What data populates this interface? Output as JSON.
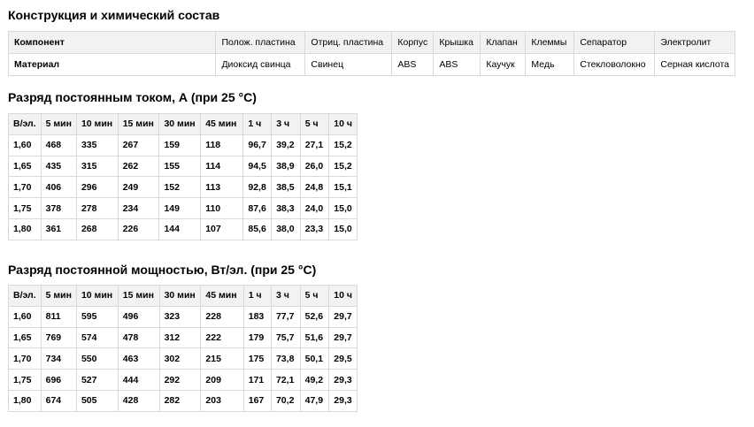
{
  "composition": {
    "title": "Конструкция и химический состав",
    "headers": [
      "Компонент",
      "Полож. пластина",
      "Отриц. пластина",
      "Корпус",
      "Крышка",
      "Клапан",
      "Клеммы",
      "Сепаратор",
      "Электролит"
    ],
    "row": [
      "Материал",
      "Диоксид свинца",
      "Свинец",
      "ABS",
      "ABS",
      "Каучук",
      "Медь",
      "Стекловолокно",
      "Серная кислота"
    ]
  },
  "current_discharge": {
    "title": "Разряд постоянным током, А (при 25 °С)",
    "headers": [
      "В/эл.",
      "5 мин",
      "10 мин",
      "15 мин",
      "30 мин",
      "45 мин",
      "1 ч",
      "3 ч",
      "5 ч",
      "10 ч"
    ],
    "rows": [
      [
        "1,60",
        "468",
        "335",
        "267",
        "159",
        "118",
        "96,7",
        "39,2",
        "27,1",
        "15,2"
      ],
      [
        "1,65",
        "435",
        "315",
        "262",
        "155",
        "114",
        "94,5",
        "38,9",
        "26,0",
        "15,2"
      ],
      [
        "1,70",
        "406",
        "296",
        "249",
        "152",
        "113",
        "92,8",
        "38,5",
        "24,8",
        "15,1"
      ],
      [
        "1,75",
        "378",
        "278",
        "234",
        "149",
        "110",
        "87,6",
        "38,3",
        "24,0",
        "15,0"
      ],
      [
        "1,80",
        "361",
        "268",
        "226",
        "144",
        "107",
        "85,6",
        "38,0",
        "23,3",
        "15,0"
      ]
    ]
  },
  "power_discharge": {
    "title": "Разряд постоянной мощностью, Вт/эл. (при 25 °С)",
    "headers": [
      "В/эл.",
      "5 мин",
      "10 мин",
      "15 мин",
      "30 мин",
      "45 мин",
      "1 ч",
      "3 ч",
      "5 ч",
      "10 ч"
    ],
    "rows": [
      [
        "1,60",
        "811",
        "595",
        "496",
        "323",
        "228",
        "183",
        "77,7",
        "52,6",
        "29,7"
      ],
      [
        "1,65",
        "769",
        "574",
        "478",
        "312",
        "222",
        "179",
        "75,7",
        "51,6",
        "29,7"
      ],
      [
        "1,70",
        "734",
        "550",
        "463",
        "302",
        "215",
        "175",
        "73,8",
        "50,1",
        "29,5"
      ],
      [
        "1,75",
        "696",
        "527",
        "444",
        "292",
        "209",
        "171",
        "72,1",
        "49,2",
        "29,3"
      ],
      [
        "1,80",
        "674",
        "505",
        "428",
        "282",
        "203",
        "167",
        "70,2",
        "47,9",
        "29,3"
      ]
    ]
  }
}
